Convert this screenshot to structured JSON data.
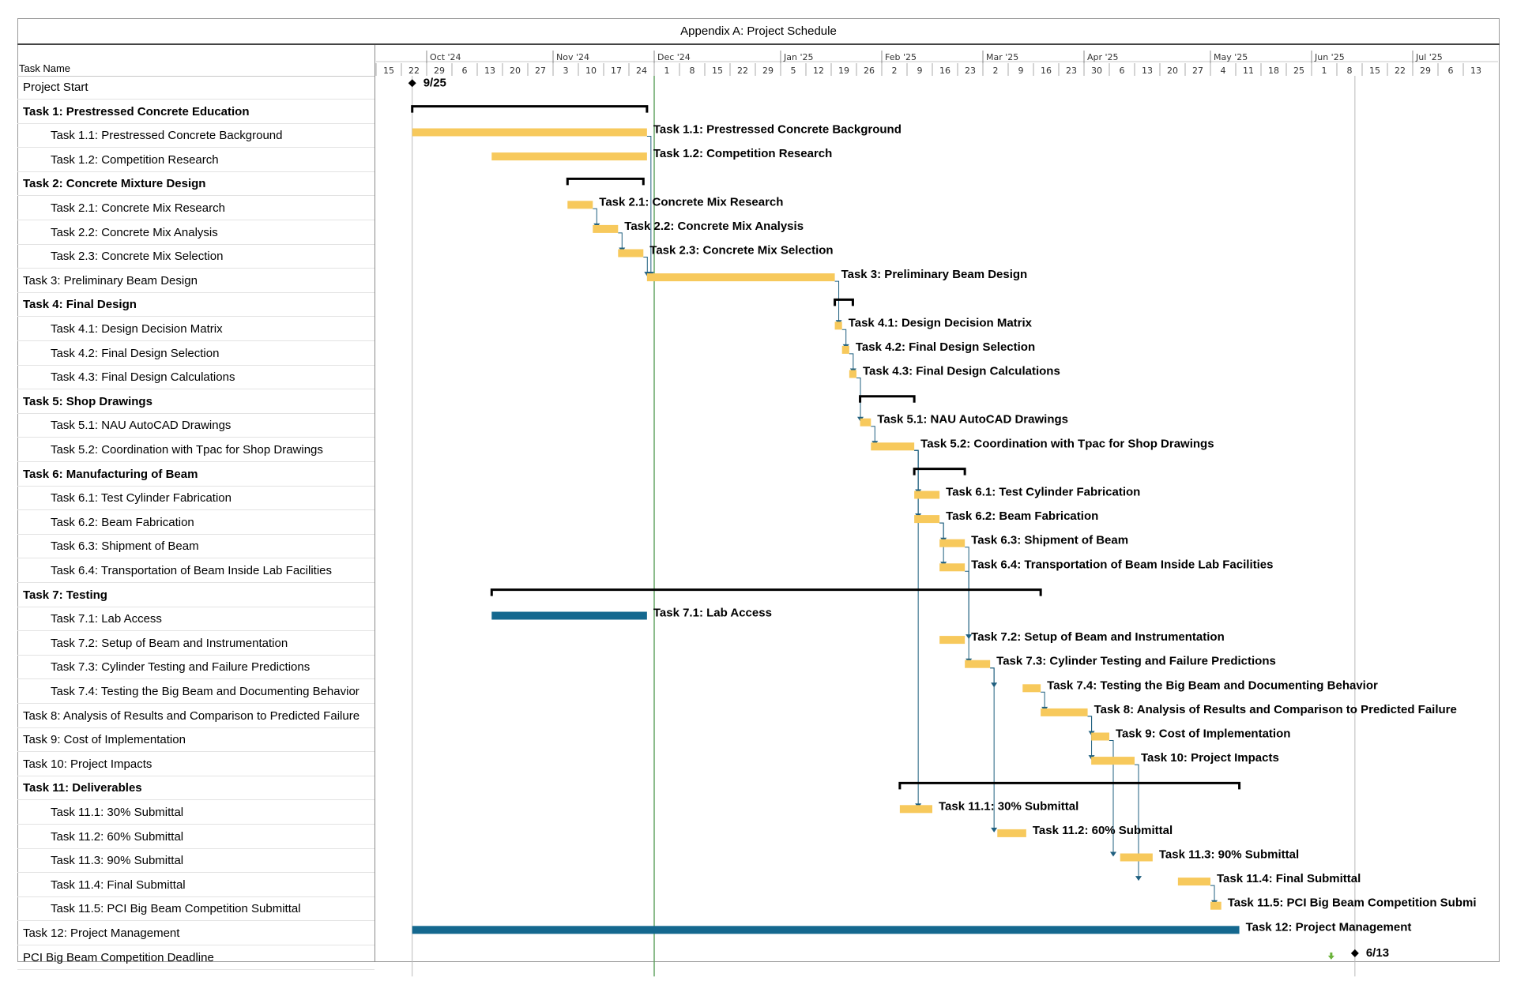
{
  "title": "Appendix A: Project Schedule",
  "task_column_header": "Task Name",
  "colors": {
    "task_bar": "#f7c95c",
    "milestone_task_bar": "#14688f",
    "summary_bracket": "#000000",
    "link_line": "#1f5f7f",
    "today_line": "#5aa05a",
    "grid_line": "#bbbbbb",
    "flag": "#6ab23a"
  },
  "chart_data": {
    "type": "gantt",
    "title": "Appendix A: Project Schedule",
    "x_axis": {
      "start": "2024-09-15",
      "end": "2025-07-19",
      "unit": "week"
    },
    "month_labels": [
      {
        "label": "Oct '24",
        "date": "2024-09-29"
      },
      {
        "label": "Nov '24",
        "date": "2024-11-03"
      },
      {
        "label": "Dec '24",
        "date": "2024-12-01"
      },
      {
        "label": "Jan '25",
        "date": "2025-01-05"
      },
      {
        "label": "Feb '25",
        "date": "2025-02-02"
      },
      {
        "label": "Mar '25",
        "date": "2025-03-02"
      },
      {
        "label": "Apr '25",
        "date": "2025-03-30"
      },
      {
        "label": "May '25",
        "date": "2025-05-04"
      },
      {
        "label": "Jun '25",
        "date": "2025-06-01"
      },
      {
        "label": "Jul '25",
        "date": "2025-06-29"
      }
    ],
    "week_labels": [
      "15",
      "22",
      "29",
      "6",
      "13",
      "20",
      "27",
      "3",
      "10",
      "17",
      "24",
      "1",
      "8",
      "15",
      "22",
      "29",
      "5",
      "12",
      "19",
      "26",
      "2",
      "9",
      "16",
      "23",
      "2",
      "9",
      "16",
      "23",
      "30",
      "6",
      "13",
      "20",
      "27",
      "4",
      "11",
      "18",
      "25",
      "1",
      "8",
      "15",
      "22",
      "29",
      "6",
      "13"
    ],
    "today_marker": "2024-12-01",
    "tasks": [
      {
        "name": "Project Start",
        "summary": false,
        "indent": 0,
        "milestone": true,
        "date": "2024-09-25",
        "label": "9/25"
      },
      {
        "name": "Task 1: Prestressed Concrete Education",
        "summary": true,
        "indent": 0,
        "start": "2024-09-25",
        "end": "2024-11-29"
      },
      {
        "name": "Task 1.1: Prestressed Concrete Background",
        "summary": false,
        "indent": 1,
        "start": "2024-09-25",
        "end": "2024-11-29",
        "label": "Task 1.1: Prestressed Concrete Background"
      },
      {
        "name": "Task 1.2: Competition Research",
        "summary": false,
        "indent": 1,
        "start": "2024-10-17",
        "end": "2024-11-29",
        "label": "Task 1.2: Competition Research"
      },
      {
        "name": "Task 2: Concrete Mixture Design",
        "summary": true,
        "indent": 0,
        "start": "2024-11-07",
        "end": "2024-11-28"
      },
      {
        "name": "Task 2.1: Concrete Mix Research",
        "summary": false,
        "indent": 1,
        "start": "2024-11-07",
        "end": "2024-11-14",
        "label": "Task 2.1: Concrete Mix Research"
      },
      {
        "name": "Task 2.2: Concrete Mix Analysis",
        "summary": false,
        "indent": 1,
        "start": "2024-11-14",
        "end": "2024-11-21",
        "label": "Task 2.2: Concrete Mix Analysis"
      },
      {
        "name": "Task 2.3: Concrete Mix Selection",
        "summary": false,
        "indent": 1,
        "start": "2024-11-21",
        "end": "2024-11-28",
        "label": "Task 2.3: Concrete Mix Selection"
      },
      {
        "name": "Task 3: Preliminary Beam Design",
        "summary": false,
        "indent": 0,
        "start": "2024-11-29",
        "end": "2025-01-20",
        "label": "Task 3: Preliminary Beam Design"
      },
      {
        "name": "Task 4: Final Design",
        "summary": true,
        "indent": 0,
        "start": "2025-01-20",
        "end": "2025-01-25"
      },
      {
        "name": "Task 4.1: Design Decision Matrix",
        "summary": false,
        "indent": 1,
        "start": "2025-01-20",
        "end": "2025-01-22",
        "label": "Task 4.1: Design Decision Matrix"
      },
      {
        "name": "Task 4.2: Final Design Selection",
        "summary": false,
        "indent": 1,
        "start": "2025-01-22",
        "end": "2025-01-24",
        "label": "Task 4.2: Final Design Selection"
      },
      {
        "name": "Task 4.3: Final Design Calculations",
        "summary": false,
        "indent": 1,
        "start": "2025-01-24",
        "end": "2025-01-26",
        "label": "Task 4.3: Final Design Calculations"
      },
      {
        "name": "Task 5: Shop Drawings",
        "summary": true,
        "indent": 0,
        "start": "2025-01-27",
        "end": "2025-02-11"
      },
      {
        "name": "Task 5.1: NAU AutoCAD Drawings",
        "summary": false,
        "indent": 1,
        "start": "2025-01-27",
        "end": "2025-01-30",
        "label": "Task 5.1: NAU AutoCAD Drawings"
      },
      {
        "name": "Task 5.2: Coordination with Tpac for Shop Drawings",
        "summary": false,
        "indent": 1,
        "start": "2025-01-30",
        "end": "2025-02-11",
        "label": "Task 5.2: Coordination with Tpac for Shop Drawings"
      },
      {
        "name": "Task 6: Manufacturing of Beam",
        "summary": true,
        "indent": 0,
        "start": "2025-02-11",
        "end": "2025-02-25"
      },
      {
        "name": "Task 6.1: Test Cylinder Fabrication",
        "summary": false,
        "indent": 1,
        "start": "2025-02-11",
        "end": "2025-02-18",
        "label": "Task 6.1: Test Cylinder Fabrication"
      },
      {
        "name": "Task 6.2: Beam Fabrication",
        "summary": false,
        "indent": 1,
        "start": "2025-02-11",
        "end": "2025-02-18",
        "label": "Task 6.2: Beam Fabrication"
      },
      {
        "name": "Task 6.3: Shipment of Beam",
        "summary": false,
        "indent": 1,
        "start": "2025-02-18",
        "end": "2025-02-25",
        "label": "Task 6.3: Shipment of Beam"
      },
      {
        "name": "Task 6.4: Transportation of Beam Inside Lab Facilities",
        "summary": false,
        "indent": 1,
        "start": "2025-02-18",
        "end": "2025-02-25",
        "label": "Task 6.4: Transportation of Beam Inside Lab Facilities"
      },
      {
        "name": "Task 7: Testing",
        "summary": true,
        "indent": 0,
        "start": "2024-10-17",
        "end": "2025-03-18"
      },
      {
        "name": "Task 7.1: Lab Access",
        "summary": false,
        "indent": 1,
        "start": "2024-10-17",
        "end": "2024-11-29",
        "label": "Task 7.1: Lab Access",
        "bar_style": "blue"
      },
      {
        "name": "Task 7.2: Setup of Beam and Instrumentation",
        "summary": false,
        "indent": 1,
        "start": "2025-02-18",
        "end": "2025-02-25",
        "label": "Task 7.2: Setup of Beam and Instrumentation"
      },
      {
        "name": "Task 7.3: Cylinder Testing and Failure Predictions",
        "summary": false,
        "indent": 1,
        "start": "2025-02-25",
        "end": "2025-03-04",
        "label": "Task 7.3: Cylinder Testing and Failure Predictions"
      },
      {
        "name": "Task 7.4: Testing the Big Beam and Documenting Behavior",
        "summary": false,
        "indent": 1,
        "start": "2025-03-13",
        "end": "2025-03-18",
        "label": "Task 7.4: Testing the Big Beam and Documenting Behavior"
      },
      {
        "name": "Task 8: Analysis of Results and Comparison to Predicted Failure",
        "summary": false,
        "indent": 0,
        "start": "2025-03-18",
        "end": "2025-03-31",
        "label": "Task 8: Analysis of Results and Comparison to Predicted Failure"
      },
      {
        "name": "Task 9: Cost of Implementation",
        "summary": false,
        "indent": 0,
        "start": "2025-04-01",
        "end": "2025-04-06",
        "label": "Task 9: Cost of Implementation"
      },
      {
        "name": "Task 10: Project Impacts",
        "summary": false,
        "indent": 0,
        "start": "2025-04-01",
        "end": "2025-04-13",
        "label": "Task 10: Project Impacts"
      },
      {
        "name": "Task 11: Deliverables",
        "summary": true,
        "indent": 0,
        "start": "2025-02-07",
        "end": "2025-05-12"
      },
      {
        "name": "Task 11.1: 30% Submittal",
        "summary": false,
        "indent": 1,
        "start": "2025-02-07",
        "end": "2025-02-16",
        "label": "Task 11.1: 30% Submittal"
      },
      {
        "name": "Task 11.2: 60% Submittal",
        "summary": false,
        "indent": 1,
        "start": "2025-03-06",
        "end": "2025-03-14",
        "label": "Task 11.2: 60% Submittal"
      },
      {
        "name": "Task 11.3: 90% Submittal",
        "summary": false,
        "indent": 1,
        "start": "2025-04-09",
        "end": "2025-04-18",
        "label": "Task 11.3: 90% Submittal"
      },
      {
        "name": "Task 11.4: Final Submittal",
        "summary": false,
        "indent": 1,
        "start": "2025-04-25",
        "end": "2025-05-04",
        "label": "Task 11.4: Final Submittal"
      },
      {
        "name": "Task 11.5: PCI Big Beam Competition Submittal",
        "summary": false,
        "indent": 1,
        "start": "2025-05-04",
        "end": "2025-05-07",
        "label": "Task 11.5: PCI Big Beam Competition Submi"
      },
      {
        "name": "Task 12: Project Management",
        "summary": false,
        "indent": 0,
        "start": "2024-09-25",
        "end": "2025-05-12",
        "label": "Task 12: Project Management",
        "bar_style": "blue"
      },
      {
        "name": "PCI Big Beam Competition Deadline",
        "summary": false,
        "indent": 0,
        "milestone": true,
        "date": "2025-06-13",
        "label": "6/13",
        "flag": true
      }
    ],
    "links": [
      {
        "from": 2,
        "to": 8
      },
      {
        "from": 5,
        "to": 6
      },
      {
        "from": 6,
        "to": 7
      },
      {
        "from": 7,
        "to": 8
      },
      {
        "from": 8,
        "to": 10
      },
      {
        "from": 10,
        "to": 11
      },
      {
        "from": 11,
        "to": 12
      },
      {
        "from": 12,
        "to": 14
      },
      {
        "from": 14,
        "to": 15
      },
      {
        "from": 15,
        "to": 17
      },
      {
        "from": 15,
        "to": 18
      },
      {
        "from": 15,
        "to": 30
      },
      {
        "from": 18,
        "to": 19
      },
      {
        "from": 18,
        "to": 20
      },
      {
        "from": 19,
        "to": 23
      },
      {
        "from": 20,
        "to": 24
      },
      {
        "from": 24,
        "to": 31
      },
      {
        "from": 24,
        "to": 25
      },
      {
        "from": 25,
        "to": 26
      },
      {
        "from": 26,
        "to": 27
      },
      {
        "from": 26,
        "to": 28
      },
      {
        "from": 27,
        "to": 32
      },
      {
        "from": 28,
        "to": 33
      },
      {
        "from": 33,
        "to": 34
      },
      {
        "from": 35,
        "to": 36
      }
    ]
  }
}
